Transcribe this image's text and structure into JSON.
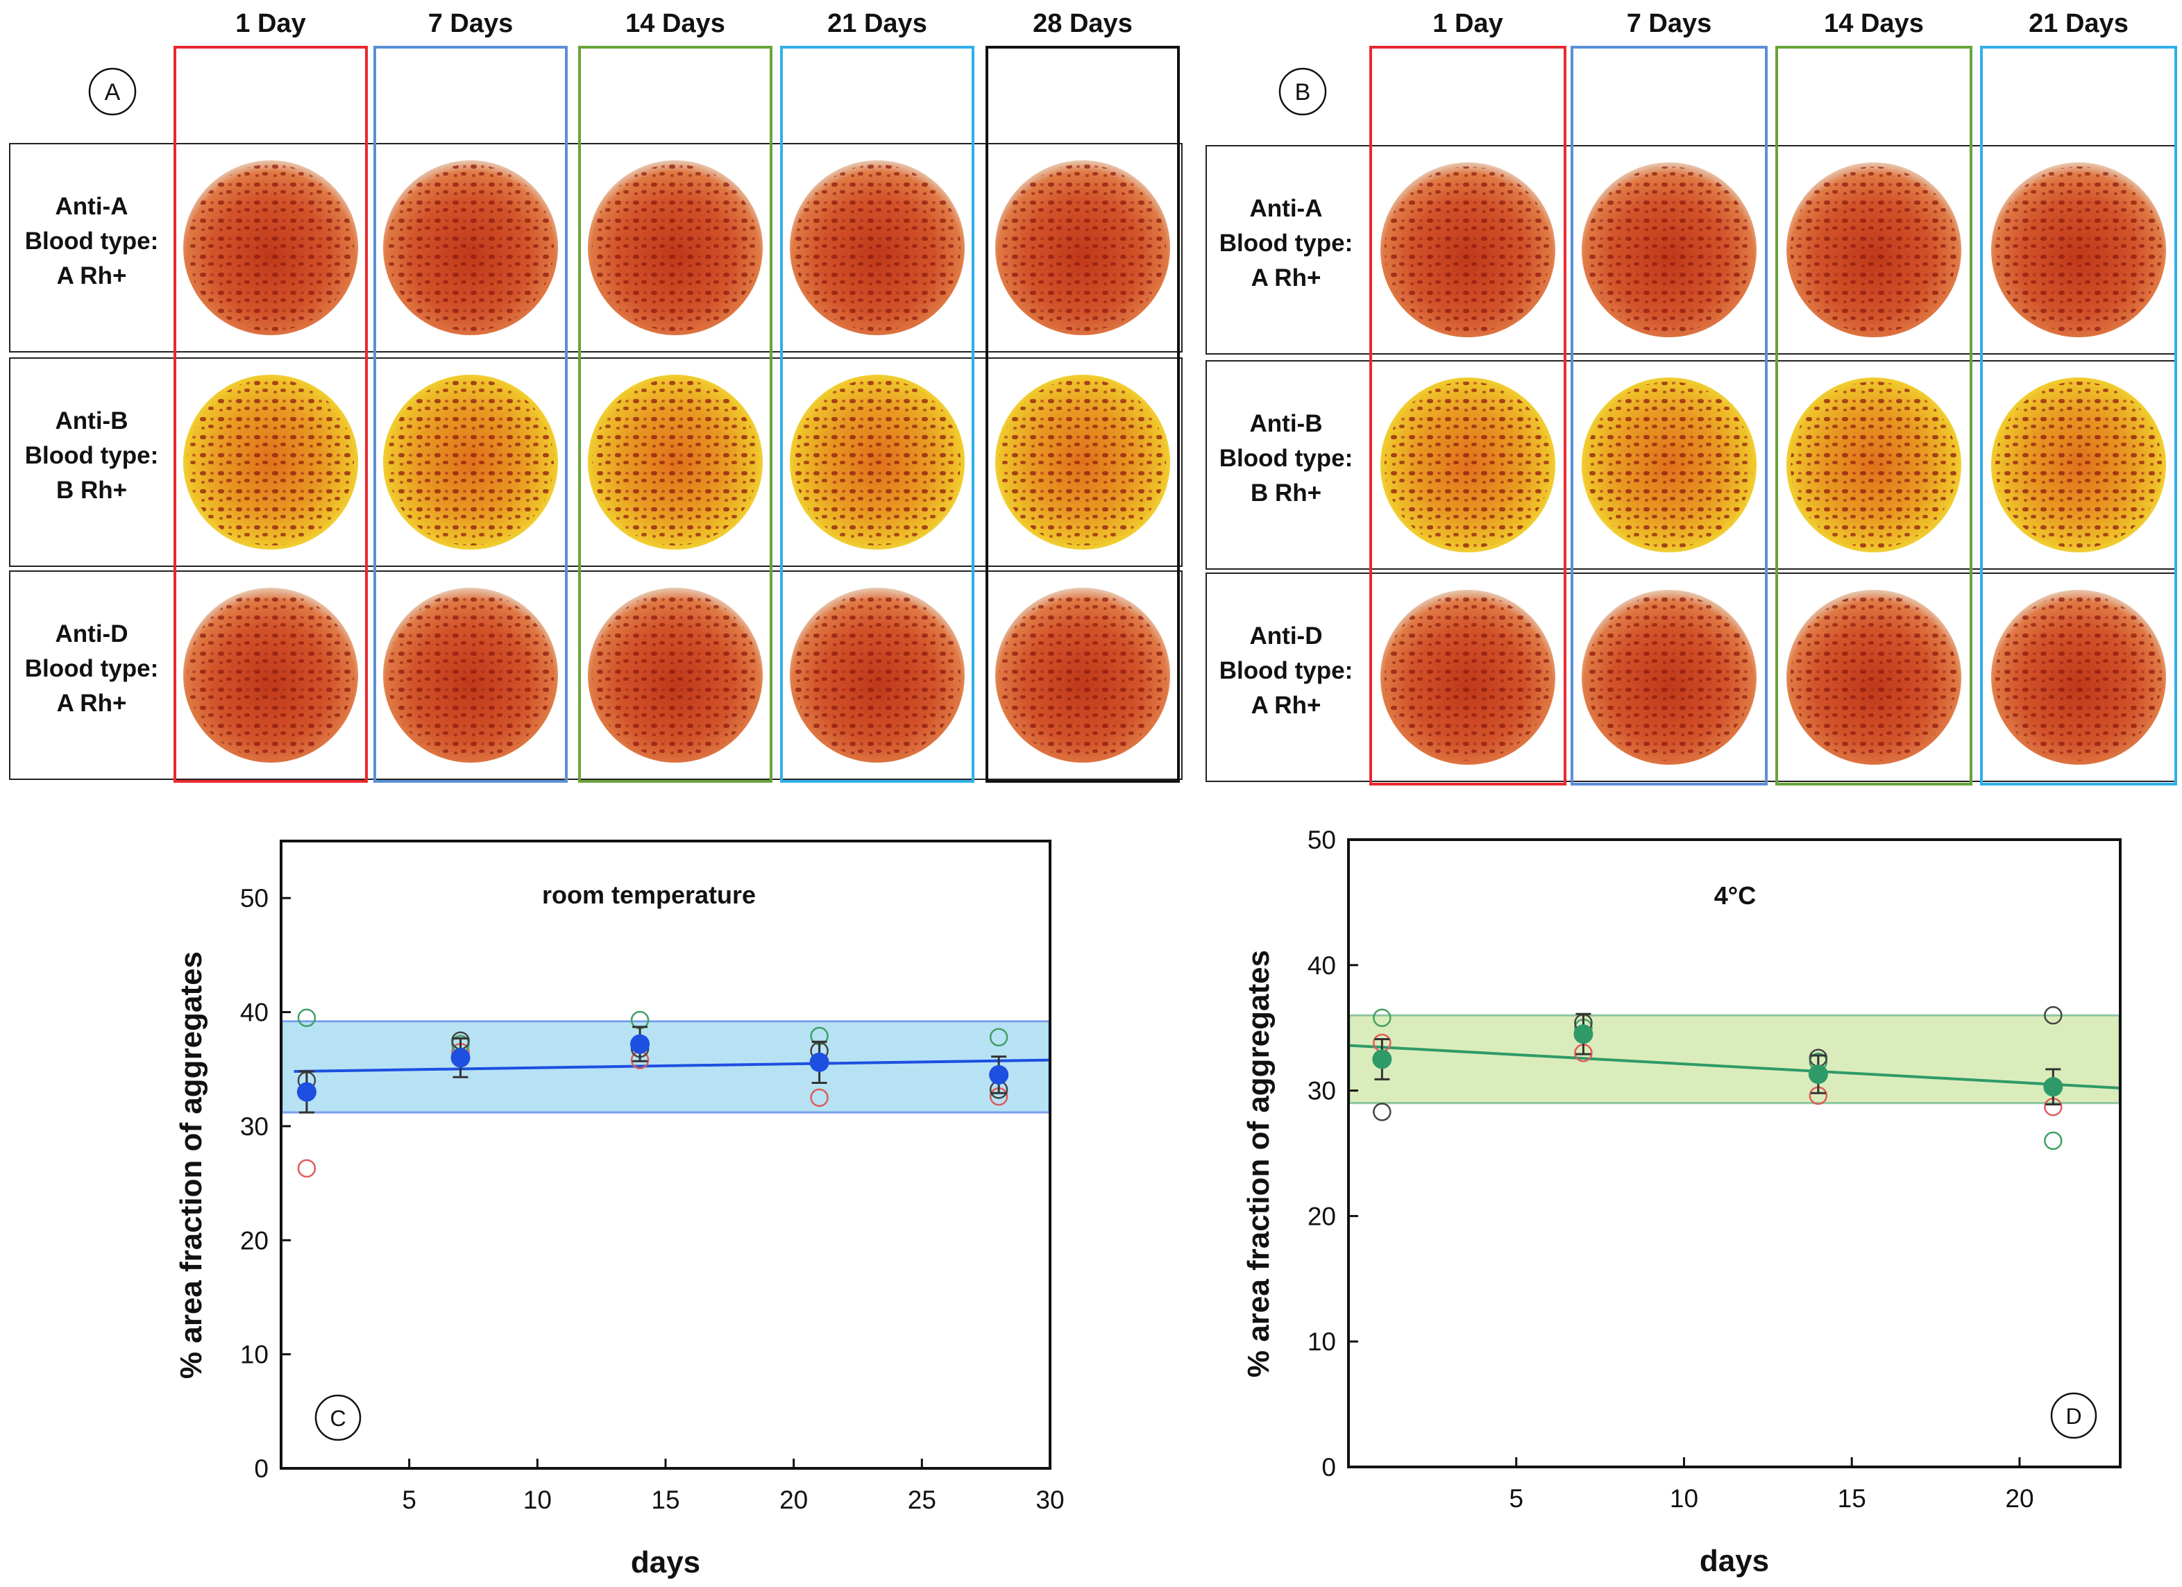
{
  "panels": {
    "A": {
      "letter": "A",
      "columns": [
        "1 Day",
        "7 Days",
        "14 Days",
        "21 Days",
        "28 Days"
      ],
      "column_colors": [
        "#e8292f",
        "#5b8fd6",
        "#6aa33a",
        "#2fb0e8",
        "#111111"
      ],
      "rows": [
        {
          "antibody": "Anti-A",
          "label": "Blood type:",
          "type": "A Rh+",
          "well": "pale"
        },
        {
          "antibody": "Anti-B",
          "label": "Blood type:",
          "type": "B Rh+",
          "well": "yellow"
        },
        {
          "antibody": "Anti-D",
          "label": "Blood type:",
          "type": "A Rh+",
          "well": "pale"
        }
      ]
    },
    "B": {
      "letter": "B",
      "columns": [
        "1 Day",
        "7 Days",
        "14 Days",
        "21 Days"
      ],
      "column_colors": [
        "#e8292f",
        "#5b8fd6",
        "#6aa33a",
        "#2fb0e8"
      ],
      "rows": [
        {
          "antibody": "Anti-A",
          "label": "Blood type:",
          "type": "A Rh+",
          "well": "pale"
        },
        {
          "antibody": "Anti-B",
          "label": "Blood type:",
          "type": "B Rh+",
          "well": "yellow"
        },
        {
          "antibody": "Anti-D",
          "label": "Blood type:",
          "type": "A Rh+",
          "well": "pale"
        }
      ]
    }
  },
  "chart_data": [
    {
      "type": "scatter",
      "panel": "C",
      "title": "room temperature",
      "xlabel": "days",
      "ylabel": "% area fraction of aggregates",
      "xlim": [
        0,
        30
      ],
      "ylim": [
        0,
        55
      ],
      "xticks": [
        5,
        10,
        15,
        20,
        25,
        30
      ],
      "yticks": [
        0,
        10,
        20,
        30,
        40,
        50
      ],
      "x": [
        1,
        7,
        14,
        21,
        28
      ],
      "mean": [
        33.0,
        36.0,
        37.2,
        35.6,
        34.5
      ],
      "error": [
        1.8,
        1.7,
        1.5,
        1.8,
        1.6
      ],
      "series": [
        {
          "name": "Anti-A",
          "color": "#e05a5a",
          "values": [
            26.3,
            36.5,
            35.8,
            32.5,
            32.6
          ]
        },
        {
          "name": "Anti-B",
          "color": "#3fa064",
          "values": [
            39.5,
            37.2,
            39.3,
            37.9,
            37.8
          ]
        },
        {
          "name": "Anti-D",
          "color": "#444444",
          "values": [
            34.0,
            37.5,
            36.8,
            36.6,
            33.2
          ]
        }
      ],
      "fit": {
        "x": [
          0.5,
          30
        ],
        "y": [
          34.8,
          35.8
        ]
      },
      "band": [
        31.2,
        39.2
      ],
      "accent": "#1d4fe0",
      "band_color": "#9fd8f0"
    },
    {
      "type": "scatter",
      "panel": "D",
      "title": "4°C",
      "xlabel": "days",
      "ylabel": "% area fraction of aggregates",
      "xlim": [
        0,
        23
      ],
      "ylim": [
        0,
        50
      ],
      "xticks": [
        5,
        10,
        15,
        20
      ],
      "yticks": [
        0,
        10,
        20,
        30,
        40,
        50
      ],
      "x": [
        1,
        7,
        14,
        21
      ],
      "mean": [
        32.5,
        34.5,
        31.3,
        30.3
      ],
      "error": [
        1.6,
        1.6,
        1.5,
        1.4
      ],
      "series": [
        {
          "name": "Anti-A",
          "color": "#e05a5a",
          "values": [
            33.8,
            33.0,
            29.6,
            28.7
          ]
        },
        {
          "name": "Anti-B",
          "color": "#3fa064",
          "values": [
            35.8,
            35.0,
            32.3,
            26.0
          ]
        },
        {
          "name": "Anti-D",
          "color": "#444444",
          "values": [
            28.3,
            35.4,
            32.6,
            36.0
          ]
        }
      ],
      "fit": {
        "x": [
          0,
          23
        ],
        "y": [
          33.6,
          30.2
        ]
      },
      "band": [
        29.0,
        36.0
      ],
      "accent": "#2e9a68",
      "band_color": "#cfe5a6"
    }
  ]
}
